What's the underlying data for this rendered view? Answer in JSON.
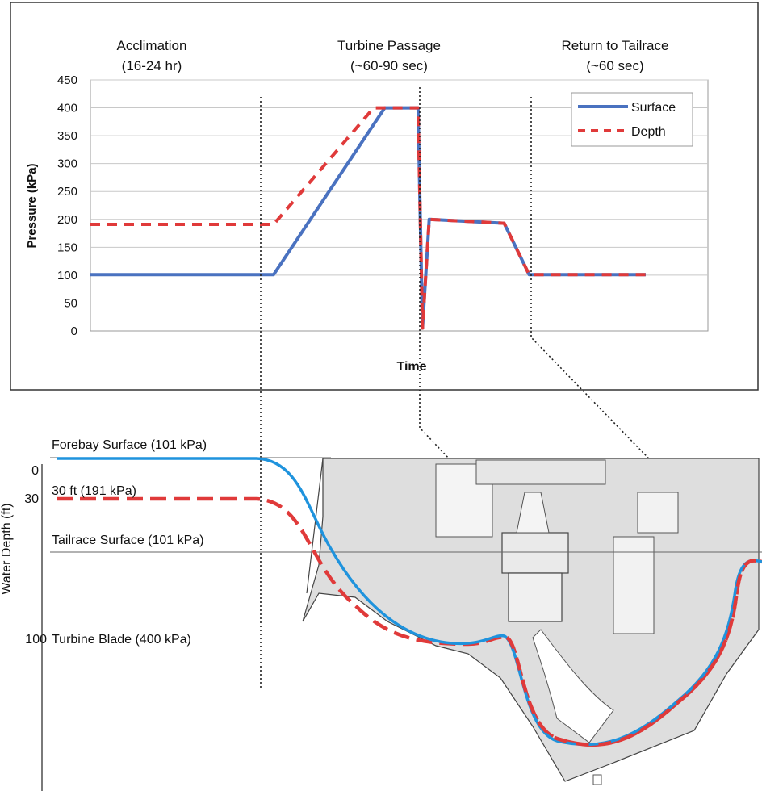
{
  "chart_data": {
    "type": "line",
    "title": "",
    "xlabel": "Time",
    "ylabel": "Pressure (kPa)",
    "ylim": [
      0,
      450
    ],
    "yticks": [
      0,
      50,
      100,
      150,
      200,
      250,
      300,
      350,
      400,
      450
    ],
    "grid": true,
    "legend_position": "top-right",
    "phases": [
      {
        "label": "Acclimation",
        "sublabel": "(16-24 hr)"
      },
      {
        "label": "Turbine Passage",
        "sublabel": "(~60-90 sec)"
      },
      {
        "label": "Return to Tailrace",
        "sublabel": "(~60 sec)"
      }
    ],
    "series": [
      {
        "name": "Surface",
        "color": "#4a72c0",
        "dash": "solid",
        "x": [
          0,
          0.33,
          0.53,
          0.585,
          0.59,
          0.598,
          0.61,
          0.745,
          0.79,
          1.0
        ],
        "values": [
          101,
          101,
          400,
          400,
          400,
          5,
          200,
          193,
          101,
          101
        ]
      },
      {
        "name": "Depth",
        "color": "#e03a3a",
        "dash": "dashed",
        "x": [
          0,
          0.33,
          0.51,
          0.585,
          0.59,
          0.598,
          0.61,
          0.745,
          0.79,
          1.0
        ],
        "values": [
          191,
          191,
          400,
          400,
          400,
          5,
          200,
          193,
          101,
          101
        ]
      }
    ]
  },
  "schematic": {
    "y_axis_label": "Water Depth (ft)",
    "depth_ticks": [
      "0",
      "30",
      "100"
    ],
    "levels": [
      {
        "label": "Forebay Surface (101 kPa)"
      },
      {
        "label": "30 ft (191 kPa)"
      },
      {
        "label": "Tailrace Surface (101 kPa)"
      },
      {
        "label": "Turbine Blade (400 kPa)"
      }
    ],
    "colors": {
      "surface_path": "#1f93dd",
      "depth_path": "#e03a3a",
      "concrete": "#dedede"
    }
  }
}
